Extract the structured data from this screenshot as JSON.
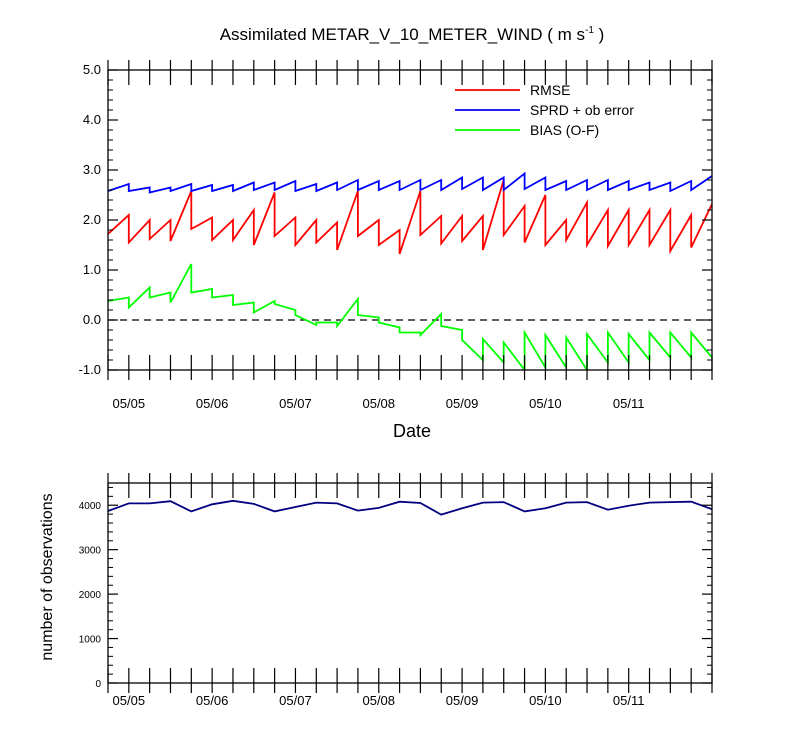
{
  "chart_data": [
    {
      "type": "line",
      "title": "Assimilated METAR_V_10_METER_WIND ( m s",
      "title_sup": "-1",
      "title_end": " )",
      "xlabel": "Date",
      "ylabel": "",
      "xlim": [
        0,
        7.25
      ],
      "ylim": [
        -1.0,
        5.0
      ],
      "yticks": [
        -1.0,
        0.0,
        1.0,
        2.0,
        3.0,
        4.0,
        5.0
      ],
      "ytick_labels": [
        "-1.0",
        "0.0",
        "1.0",
        "2.0",
        "3.0",
        "4.0",
        "5.0"
      ],
      "xticks": [
        0.25,
        1.25,
        2.25,
        3.25,
        4.25,
        5.25,
        6.25
      ],
      "xtick_labels": [
        "05/05",
        "05/06",
        "05/07",
        "05/08",
        "05/09",
        "05/10",
        "05/11"
      ],
      "legend_position": "top-right",
      "zero_line": {
        "style": "dashed",
        "y": 0
      },
      "series": [
        {
          "name": "RMSE",
          "color": "#ff0000",
          "x": [
            0,
            0.25,
            0.25,
            0.5,
            0.5,
            0.75,
            0.75,
            1,
            1,
            1.25,
            1.25,
            1.5,
            1.5,
            1.75,
            1.75,
            2,
            2,
            2.25,
            2.25,
            2.5,
            2.5,
            2.75,
            2.75,
            3,
            3,
            3.25,
            3.25,
            3.5,
            3.5,
            3.75,
            3.75,
            4,
            4,
            4.25,
            4.25,
            4.5,
            4.5,
            4.75,
            4.75,
            5,
            5,
            5.25,
            5.25,
            5.5,
            5.5,
            5.75,
            5.75,
            6,
            6,
            6.25,
            6.25,
            6.5,
            6.5,
            6.75,
            6.75,
            7,
            7,
            7.25
          ],
          "y": [
            1.72,
            2.1,
            1.55,
            2.0,
            1.62,
            2.0,
            1.58,
            2.58,
            1.82,
            2.05,
            1.6,
            2.0,
            1.6,
            2.2,
            1.5,
            2.55,
            1.68,
            2.05,
            1.5,
            2.0,
            1.55,
            1.95,
            1.4,
            2.58,
            1.68,
            2.0,
            1.5,
            1.8,
            1.32,
            2.58,
            1.7,
            2.08,
            1.53,
            2.08,
            1.58,
            2.08,
            1.4,
            2.8,
            1.7,
            2.28,
            1.55,
            2.5,
            1.5,
            2.0,
            1.6,
            2.35,
            1.5,
            2.2,
            1.48,
            2.2,
            1.5,
            2.2,
            1.5,
            2.2,
            1.38,
            2.1,
            1.45,
            2.32
          ]
        },
        {
          "name": "SPRD + ob error",
          "color": "#0000ff",
          "x": [
            0,
            0.25,
            0.25,
            0.5,
            0.5,
            0.75,
            0.75,
            1,
            1,
            1.25,
            1.25,
            1.5,
            1.5,
            1.75,
            1.75,
            2,
            2,
            2.25,
            2.25,
            2.5,
            2.5,
            2.75,
            2.75,
            3,
            3,
            3.25,
            3.25,
            3.5,
            3.5,
            3.75,
            3.75,
            4,
            4,
            4.25,
            4.25,
            4.5,
            4.5,
            4.75,
            4.75,
            5,
            5,
            5.25,
            5.25,
            5.5,
            5.5,
            5.75,
            5.75,
            6,
            6,
            6.25,
            6.25,
            6.5,
            6.5,
            6.75,
            6.75,
            7,
            7,
            7.25
          ],
          "y": [
            2.58,
            2.72,
            2.58,
            2.65,
            2.55,
            2.65,
            2.58,
            2.72,
            2.58,
            2.7,
            2.58,
            2.7,
            2.58,
            2.75,
            2.6,
            2.75,
            2.6,
            2.78,
            2.58,
            2.72,
            2.58,
            2.75,
            2.6,
            2.8,
            2.6,
            2.78,
            2.6,
            2.78,
            2.6,
            2.8,
            2.6,
            2.8,
            2.6,
            2.85,
            2.62,
            2.85,
            2.6,
            2.85,
            2.6,
            2.93,
            2.62,
            2.85,
            2.6,
            2.78,
            2.6,
            2.8,
            2.6,
            2.8,
            2.6,
            2.78,
            2.6,
            2.75,
            2.6,
            2.75,
            2.58,
            2.78,
            2.6,
            2.88
          ]
        },
        {
          "name": "BIAS (O-F)",
          "color": "#00ff00",
          "x": [
            0,
            0.25,
            0.25,
            0.5,
            0.5,
            0.75,
            0.75,
            1,
            1,
            1.25,
            1.25,
            1.5,
            1.5,
            1.75,
            1.75,
            2,
            2,
            2.25,
            2.25,
            2.5,
            2.5,
            2.75,
            2.75,
            3,
            3,
            3.25,
            3.25,
            3.5,
            3.5,
            3.75,
            3.75,
            4,
            4,
            4.25,
            4.25,
            4.5,
            4.5,
            4.75,
            4.75,
            5,
            5,
            5.25,
            5.25,
            5.5,
            5.5,
            5.75,
            5.75,
            6,
            6,
            6.25,
            6.25,
            6.5,
            6.5,
            6.75,
            6.75,
            7,
            7,
            7.25
          ],
          "y": [
            0.38,
            0.45,
            0.25,
            0.65,
            0.45,
            0.55,
            0.35,
            1.12,
            0.55,
            0.62,
            0.45,
            0.5,
            0.3,
            0.35,
            0.15,
            0.38,
            0.32,
            0.2,
            0.1,
            -0.1,
            -0.05,
            -0.05,
            -0.12,
            0.42,
            0.1,
            0.05,
            -0.05,
            -0.15,
            -0.25,
            -0.25,
            -0.3,
            0.12,
            -0.12,
            -0.2,
            -0.4,
            -0.8,
            -0.38,
            -0.85,
            -0.45,
            -1.0,
            -0.25,
            -0.95,
            -0.3,
            -0.95,
            -0.35,
            -1.0,
            -0.28,
            -0.85,
            -0.25,
            -0.85,
            -0.28,
            -0.8,
            -0.25,
            -0.75,
            -0.25,
            -0.75,
            -0.25,
            -0.75
          ]
        }
      ]
    },
    {
      "type": "line",
      "title": "",
      "xlabel": "",
      "ylabel": "number of observations",
      "xlim": [
        0,
        7.25
      ],
      "ylim": [
        0,
        4500
      ],
      "yticks": [
        0,
        1000,
        2000,
        3000,
        4000
      ],
      "ytick_labels": [
        "0",
        "1000",
        "2000",
        "3000",
        "4000"
      ],
      "xticks": [
        0.25,
        1.25,
        2.25,
        3.25,
        4.25,
        5.25,
        6.25
      ],
      "xtick_labels": [
        "05/05",
        "05/06",
        "05/07",
        "05/08",
        "05/09",
        "05/10",
        "05/11"
      ],
      "series": [
        {
          "color": "#000080",
          "x": [
            0,
            0.25,
            0.5,
            0.75,
            1,
            1.25,
            1.5,
            1.75,
            2,
            2.25,
            2.5,
            2.75,
            3,
            3.25,
            3.5,
            3.75,
            4,
            4.25,
            4.5,
            4.75,
            5,
            5.25,
            5.5,
            5.75,
            6,
            6.25,
            6.5,
            6.75,
            7,
            7.25
          ],
          "y": [
            3870,
            4040,
            4040,
            4090,
            3860,
            4020,
            4100,
            4030,
            3860,
            3960,
            4060,
            4040,
            3880,
            3940,
            4080,
            4050,
            3790,
            3930,
            4060,
            4070,
            3860,
            3930,
            4060,
            4070,
            3900,
            3990,
            4060,
            4070,
            4080,
            3910
          ]
        }
      ]
    }
  ]
}
